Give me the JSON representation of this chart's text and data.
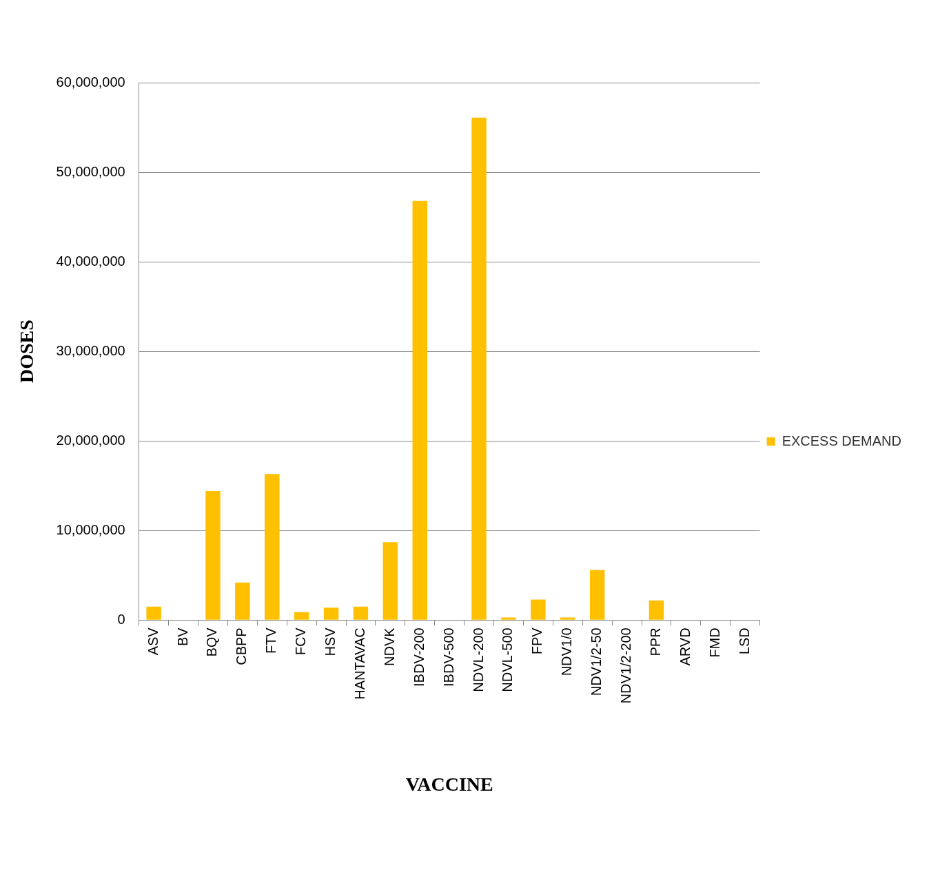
{
  "chart_data": {
    "type": "bar",
    "xlabel": "VACCINE",
    "ylabel": "DOSES",
    "categories": [
      "ASV",
      "BV",
      "BQV",
      "CBPP",
      "FTV",
      "FCV",
      "HSV",
      "HANTAVAC",
      "NDVK",
      "IBDV-200",
      "IBDV-500",
      "NDVL-200",
      "NDVL-500",
      "FPV",
      "NDV1/0",
      "NDV1/2-50",
      "NDV1/2-200",
      "PPR",
      "ARVD",
      "FMD",
      "LSD"
    ],
    "series": [
      {
        "name": "EXCESS DEMAND",
        "color": "#ffc000",
        "values": [
          1500000,
          0,
          14400000,
          4200000,
          16300000,
          900000,
          1400000,
          1500000,
          8700000,
          46800000,
          0,
          56100000,
          300000,
          2300000,
          300000,
          5600000,
          0,
          2200000,
          0,
          0,
          0
        ]
      }
    ],
    "ylim": [
      0,
      60000000
    ],
    "yticks": [
      0,
      {
        "value": 10000000,
        "label": "10,000,000"
      },
      {
        "value": 20000000,
        "label": "20,000,000"
      },
      {
        "value": 30000000,
        "label": "30,000,000"
      },
      {
        "value": 40000000,
        "label": "40,000,000"
      },
      {
        "value": 50000000,
        "label": "50,000,000"
      },
      {
        "value": 60000000,
        "label": "60,000,000"
      }
    ],
    "grid": "y",
    "legend": "right"
  }
}
